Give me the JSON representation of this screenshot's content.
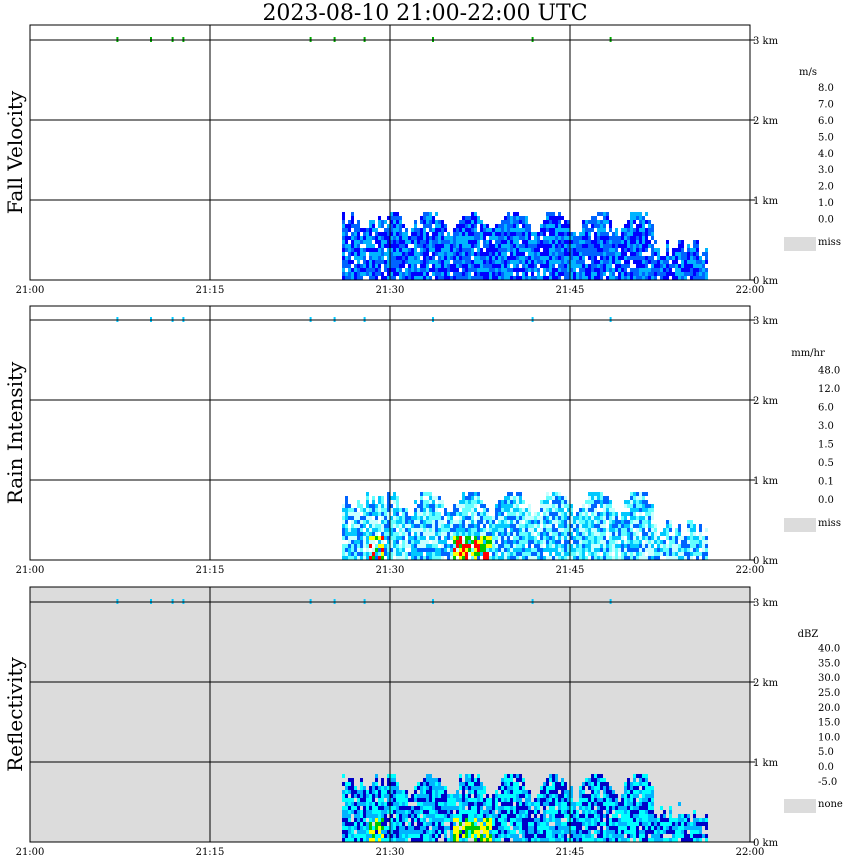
{
  "title": "2023-08-10   21:00-22:00 UTC",
  "chart_data": [
    {
      "type": "heatmap",
      "panel_label": "Fall Velocity",
      "time_ticks": [
        "21:00",
        "21:15",
        "21:30",
        "21:45",
        "22:00"
      ],
      "height_ticks": [
        "0 km",
        "1 km",
        "2 km",
        "3 km"
      ],
      "ylim_km": [
        0,
        3.0
      ],
      "background": "#ffffff",
      "colorbar": {
        "unit": "m/s",
        "labels": [
          "8.0",
          "7.0",
          "6.0",
          "5.0",
          "4.0",
          "3.0",
          "2.0",
          "1.0",
          "0.0"
        ],
        "colors": [
          "#ff00ff",
          "#ff0000",
          "#ff6a00",
          "#ffc800",
          "#ccff00",
          "#00c800",
          "#00ffc8",
          "#00b4ff",
          "#0064ff",
          "#0000ff"
        ],
        "missing_label": "miss",
        "missing_color": "#dcdcdc"
      },
      "echo": {
        "start_min": 26,
        "end_min": 56.5,
        "top_km": 0.85,
        "dominant_colors": [
          "#0000ff",
          "#0064ff",
          "#00b4ff"
        ],
        "max_value": "1.0-2.0 m/s"
      }
    },
    {
      "type": "heatmap",
      "panel_label": "Rain Intensity",
      "time_ticks": [
        "21:00",
        "21:15",
        "21:30",
        "21:45",
        "22:00"
      ],
      "height_ticks": [
        "0 km",
        "1 km",
        "2 km",
        "3 km"
      ],
      "ylim_km": [
        0,
        3.0
      ],
      "background": "#ffffff",
      "colorbar": {
        "unit": "mm/hr",
        "labels": [
          "48.0",
          "12.0",
          "6.0",
          "3.0",
          "1.5",
          "0.5",
          "0.1",
          "0.0"
        ],
        "colors": [
          "#000000",
          "#5a0050",
          "#a000a0",
          "#ff00c8",
          "#ff0000",
          "#ff6400",
          "#ffff00",
          "#96ff00",
          "#00c800",
          "#0000c8",
          "#0064ff",
          "#00c8ff",
          "#64ffff",
          "#c8ffff"
        ],
        "missing_label": "miss",
        "missing_color": "#dcdcdc"
      },
      "echo": {
        "start_min": 26,
        "end_min": 56.5,
        "top_km": 0.85,
        "dominant_colors": [
          "#c8ffff",
          "#64ffff",
          "#00c8ff",
          "#0064ff"
        ],
        "core_colors": [
          "#00c800",
          "#ffff00",
          "#ff0000"
        ]
      }
    },
    {
      "type": "heatmap",
      "panel_label": "Reflectivity",
      "time_ticks": [
        "21:00",
        "21:15",
        "21:30",
        "21:45",
        "22:00"
      ],
      "height_ticks": [
        "0 km",
        "1 km",
        "2 km",
        "3 km"
      ],
      "ylim_km": [
        0,
        3.0
      ],
      "background": "#dcdcdc",
      "colorbar": {
        "unit": "dBZ",
        "labels": [
          "40.0",
          "35.0",
          "30.0",
          "25.0",
          "20.0",
          "15.0",
          "10.0",
          "5.0",
          "0.0",
          "-5.0"
        ],
        "colors": [
          "#b450b4",
          "#c800c8",
          "#e600e6",
          "#ff0000",
          "#ff7800",
          "#ffff00",
          "#00c800",
          "#00ffff",
          "#00b4ff",
          "#0000c8"
        ],
        "missing_label": "none",
        "missing_color": "#dcdcdc"
      },
      "echo": {
        "start_min": 26,
        "end_min": 56.5,
        "top_km": 0.85,
        "dominant_colors": [
          "#00b4ff",
          "#00ffff",
          "#0000c8"
        ],
        "core_colors": [
          "#00c800",
          "#ffff00"
        ]
      }
    }
  ]
}
